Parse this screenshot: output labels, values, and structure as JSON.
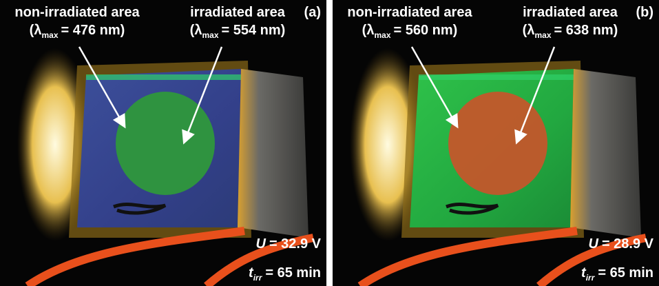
{
  "panels": [
    {
      "id": "(a)",
      "left_label": {
        "title": "non-irradiated area",
        "open": "(λ",
        "sub": "max",
        "rest": "= 476 nm)"
      },
      "right_label": {
        "title": "irradiated area",
        "open": "(λ",
        "sub": "max",
        "rest": "= 554 nm)"
      },
      "voltage": {
        "symbol": "U",
        "rest": "= 32.9 V"
      },
      "time": {
        "symbol": "t",
        "sub": "irr",
        "rest": "= 65 min"
      }
    },
    {
      "id": "(b)",
      "left_label": {
        "title": "non-irradiated area",
        "open": "(λ",
        "sub": "max",
        "rest": "= 560 nm)"
      },
      "right_label": {
        "title": "irradiated area",
        "open": "(λ",
        "sub": "max",
        "rest": "= 638 nm)"
      },
      "voltage": {
        "symbol": "U",
        "rest": "= 28.9 V"
      },
      "time": {
        "symbol": "t",
        "sub": "irr",
        "rest": "= 65 min"
      }
    }
  ]
}
